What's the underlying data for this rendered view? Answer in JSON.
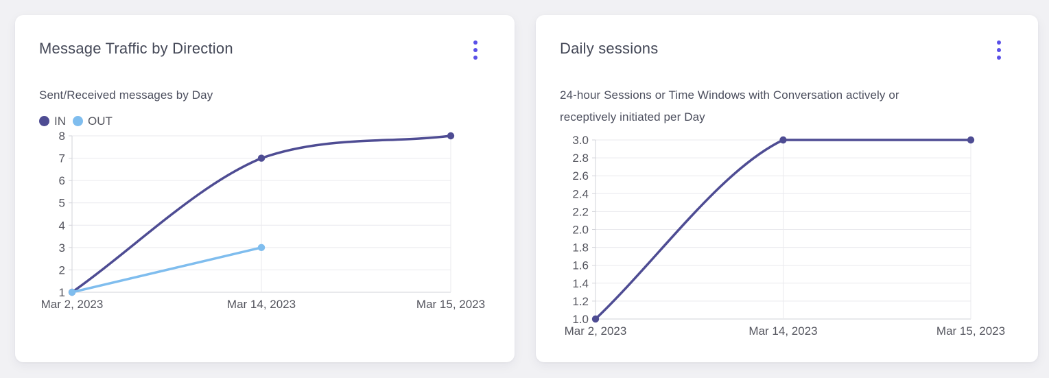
{
  "theme": {
    "page_bg": "#f1f1f4",
    "card_bg": "#ffffff",
    "accent": "#5a50e8",
    "title_color": "#434756",
    "subtitle_color": "#4c4f5e",
    "tick_color": "#54555e",
    "grid_color": "#e9e9ed",
    "axis_color": "#d2d3d9"
  },
  "icons": {
    "card_menu": "kebab-vertical-dots-icon"
  },
  "cards": [
    {
      "title": "Message Traffic by Direction",
      "subtitle": "Sent/Received messages by Day"
    },
    {
      "title": "Daily sessions",
      "subtitle": "24-hour Sessions or Time Windows with Conversation actively or receptively initiated per Day"
    }
  ],
  "chart_data": [
    {
      "type": "line",
      "title": "Message Traffic by Direction",
      "subtitle": "Sent/Received messages by Day",
      "categories": [
        "Mar 2, 2023",
        "Mar 14, 2023",
        "Mar 15, 2023"
      ],
      "series": [
        {
          "name": "IN",
          "color": "#4e4c93",
          "values": [
            1,
            7,
            8
          ]
        },
        {
          "name": "OUT",
          "color": "#7fbdee",
          "values": [
            1,
            3,
            null
          ]
        }
      ],
      "ylim": [
        1,
        8
      ],
      "yticks": [
        1,
        2,
        3,
        4,
        5,
        6,
        7,
        8
      ],
      "ytick_labels": [
        "1",
        "2",
        "3",
        "4",
        "5",
        "6",
        "7",
        "8"
      ],
      "grid": true,
      "legend": [
        "IN",
        "OUT"
      ],
      "legend_position": "top-left",
      "smooth": true
    },
    {
      "type": "line",
      "title": "Daily sessions",
      "subtitle": "24-hour Sessions or Time Windows with Conversation actively or receptively initiated per Day",
      "categories": [
        "Mar 2, 2023",
        "Mar 14, 2023",
        "Mar 15, 2023"
      ],
      "series": [
        {
          "name": "Daily sessions",
          "color": "#4e4c93",
          "values": [
            1.0,
            3.0,
            3.0
          ]
        }
      ],
      "ylim": [
        1.0,
        3.0
      ],
      "yticks": [
        1.0,
        1.2,
        1.4,
        1.6,
        1.8,
        2.0,
        2.2,
        2.4,
        2.6,
        2.8,
        3.0
      ],
      "ytick_labels": [
        "1.0",
        "1.2",
        "1.4",
        "1.6",
        "1.8",
        "2.0",
        "2.2",
        "2.4",
        "2.6",
        "2.8",
        "3.0"
      ],
      "grid": true,
      "legend_position": "none",
      "smooth": true
    }
  ]
}
